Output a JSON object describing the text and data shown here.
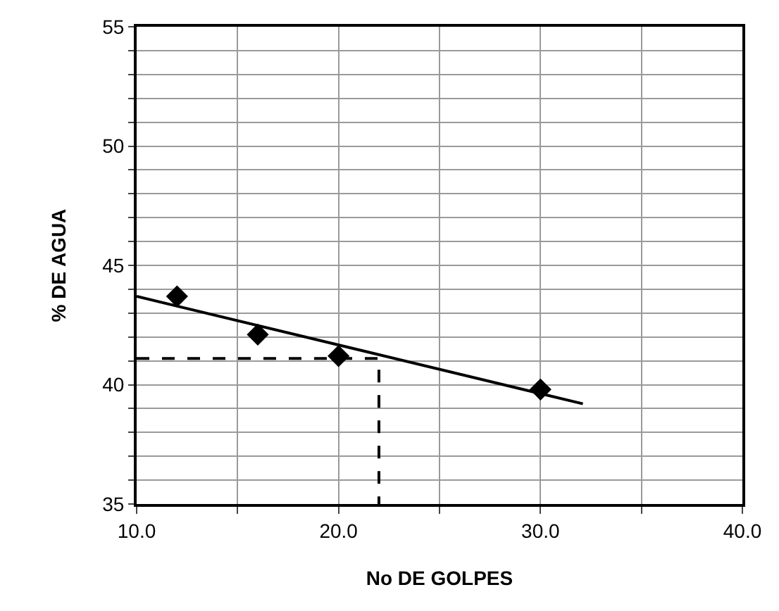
{
  "chart_data": {
    "type": "scatter",
    "xlabel": "No DE GOLPES",
    "ylabel": "% DE AGUA",
    "xlim": [
      10,
      40
    ],
    "ylim": [
      35,
      55
    ],
    "xticks": [
      {
        "value": 10,
        "label": "10.0"
      },
      {
        "value": 15,
        "label": null
      },
      {
        "value": 20,
        "label": "20.0"
      },
      {
        "value": 25,
        "label": null
      },
      {
        "value": 30,
        "label": "30.0"
      },
      {
        "value": 35,
        "label": null
      },
      {
        "value": 40,
        "label": "40.0"
      }
    ],
    "yticks": [
      35,
      {
        "value": 36,
        "label": null
      },
      {
        "value": 37,
        "label": null
      },
      {
        "value": 38,
        "label": null
      },
      {
        "value": 39,
        "label": null
      },
      40,
      {
        "value": 41,
        "label": null
      },
      {
        "value": 42,
        "label": null
      },
      {
        "value": 43,
        "label": null
      },
      {
        "value": 44,
        "label": null
      },
      45,
      {
        "value": 46,
        "label": null
      },
      {
        "value": 47,
        "label": null
      },
      {
        "value": 48,
        "label": null
      },
      {
        "value": 49,
        "label": null
      },
      50,
      {
        "value": 51,
        "label": null
      },
      {
        "value": 52,
        "label": null
      },
      {
        "value": 53,
        "label": null
      },
      {
        "value": 54,
        "label": null
      },
      55
    ],
    "grid": true,
    "series": [
      {
        "type": "scatter",
        "color": "#000000",
        "marker": "diamond",
        "x": [
          12,
          16,
          20,
          30
        ],
        "values": [
          43.7,
          42.1,
          41.2,
          39.8
        ]
      },
      {
        "type": "line",
        "color": "#000000",
        "marker": "none",
        "line_style": "solid",
        "x": [
          10,
          32.1
        ],
        "values": [
          43.7,
          39.2
        ]
      },
      {
        "type": "line",
        "color": "#000000",
        "marker": "none",
        "line_style": "dashed",
        "x": [
          10,
          22,
          22
        ],
        "values": [
          41.1,
          41.1,
          35
        ]
      }
    ]
  }
}
